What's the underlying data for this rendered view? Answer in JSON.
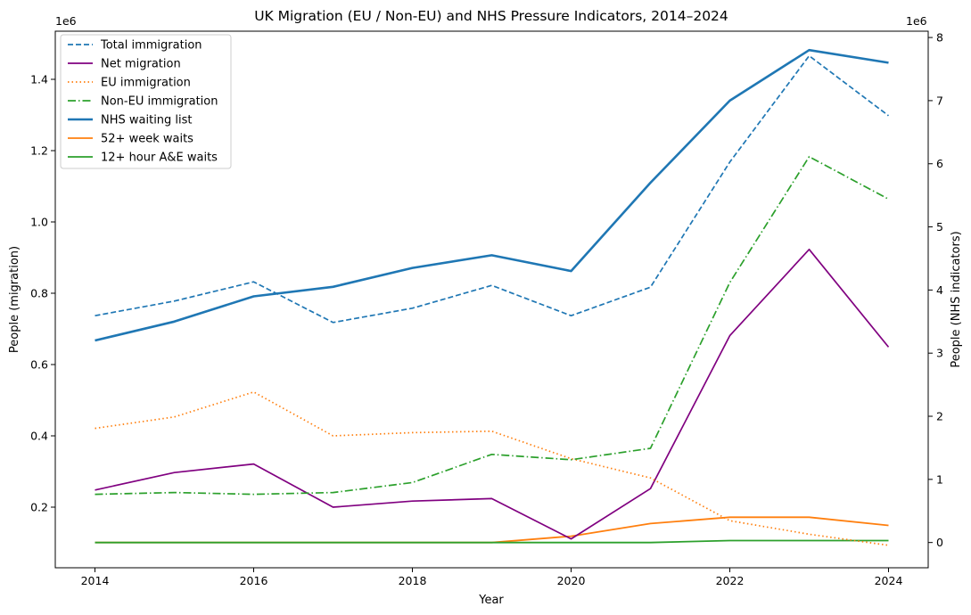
{
  "chart_data": {
    "type": "line",
    "title": "UK Migration (EU / Non-EU) and NHS Pressure Indicators, 2014–2024",
    "xlabel": "Year",
    "ylabel_left": "People (migration)",
    "ylabel_right": "People (NHS indicators)",
    "offset_left": "1e6",
    "offset_right": "1e6",
    "x": [
      2014,
      2015,
      2016,
      2017,
      2018,
      2019,
      2020,
      2021,
      2022,
      2023,
      2024
    ],
    "x_ticks": [
      "2014",
      "2016",
      "2018",
      "2020",
      "2022",
      "2024"
    ],
    "xlim": [
      2013.5,
      2024.5
    ],
    "ylim_left": [
      0.03,
      1.535
    ],
    "ylim_right": [
      -0.4,
      8.1
    ],
    "y_ticks_left": [
      "0.2",
      "0.4",
      "0.6",
      "0.8",
      "1.0",
      "1.2",
      "1.4"
    ],
    "y_ticks_right": [
      "0",
      "1",
      "2",
      "3",
      "4",
      "5",
      "6",
      "7",
      "8"
    ],
    "legend_position": "top-left",
    "series": [
      {
        "name": "Total immigration",
        "axis": "left",
        "color": "#1f77b4",
        "style": "dashed",
        "width": 1.7,
        "values": [
          0.737,
          0.778,
          0.832,
          0.718,
          0.758,
          0.822,
          0.737,
          0.817,
          1.168,
          1.466,
          1.298
        ]
      },
      {
        "name": "Net migration",
        "axis": "left",
        "color": "#800080",
        "style": "solid",
        "width": 1.7,
        "values": [
          0.248,
          0.297,
          0.321,
          0.2,
          0.217,
          0.224,
          0.111,
          0.252,
          0.681,
          0.923,
          0.649
        ]
      },
      {
        "name": "EU immigration",
        "axis": "left",
        "color": "#ff7f0e",
        "style": "dotted",
        "width": 1.7,
        "values": [
          0.421,
          0.453,
          0.523,
          0.4,
          0.409,
          0.413,
          0.336,
          0.282,
          0.162,
          0.124,
          0.093
        ]
      },
      {
        "name": "Non-EU immigration",
        "axis": "left",
        "color": "#2ca02c",
        "style": "dashdot",
        "width": 1.7,
        "values": [
          0.236,
          0.241,
          0.236,
          0.241,
          0.269,
          0.348,
          0.333,
          0.365,
          0.83,
          1.183,
          1.064
        ]
      },
      {
        "name": "NHS waiting list",
        "axis": "right",
        "color": "#1f77b4",
        "style": "solid",
        "width": 2.6,
        "values": [
          3.2,
          3.5,
          3.9,
          4.05,
          4.35,
          4.55,
          4.3,
          5.7,
          7.0,
          7.8,
          7.6
        ]
      },
      {
        "name": "52+ week waits",
        "axis": "right",
        "color": "#ff7f0e",
        "style": "solid",
        "width": 1.8,
        "values": [
          0.0,
          0.0,
          0.0,
          0.0,
          0.0,
          0.0,
          0.1,
          0.3,
          0.4,
          0.4,
          0.27
        ]
      },
      {
        "name": "12+ hour A&E waits",
        "axis": "right",
        "color": "#2ca02c",
        "style": "solid",
        "width": 1.8,
        "values": [
          0.0,
          0.0,
          0.0,
          0.0,
          0.0,
          0.0,
          0.0,
          0.0,
          0.03,
          0.03,
          0.03
        ]
      }
    ]
  }
}
